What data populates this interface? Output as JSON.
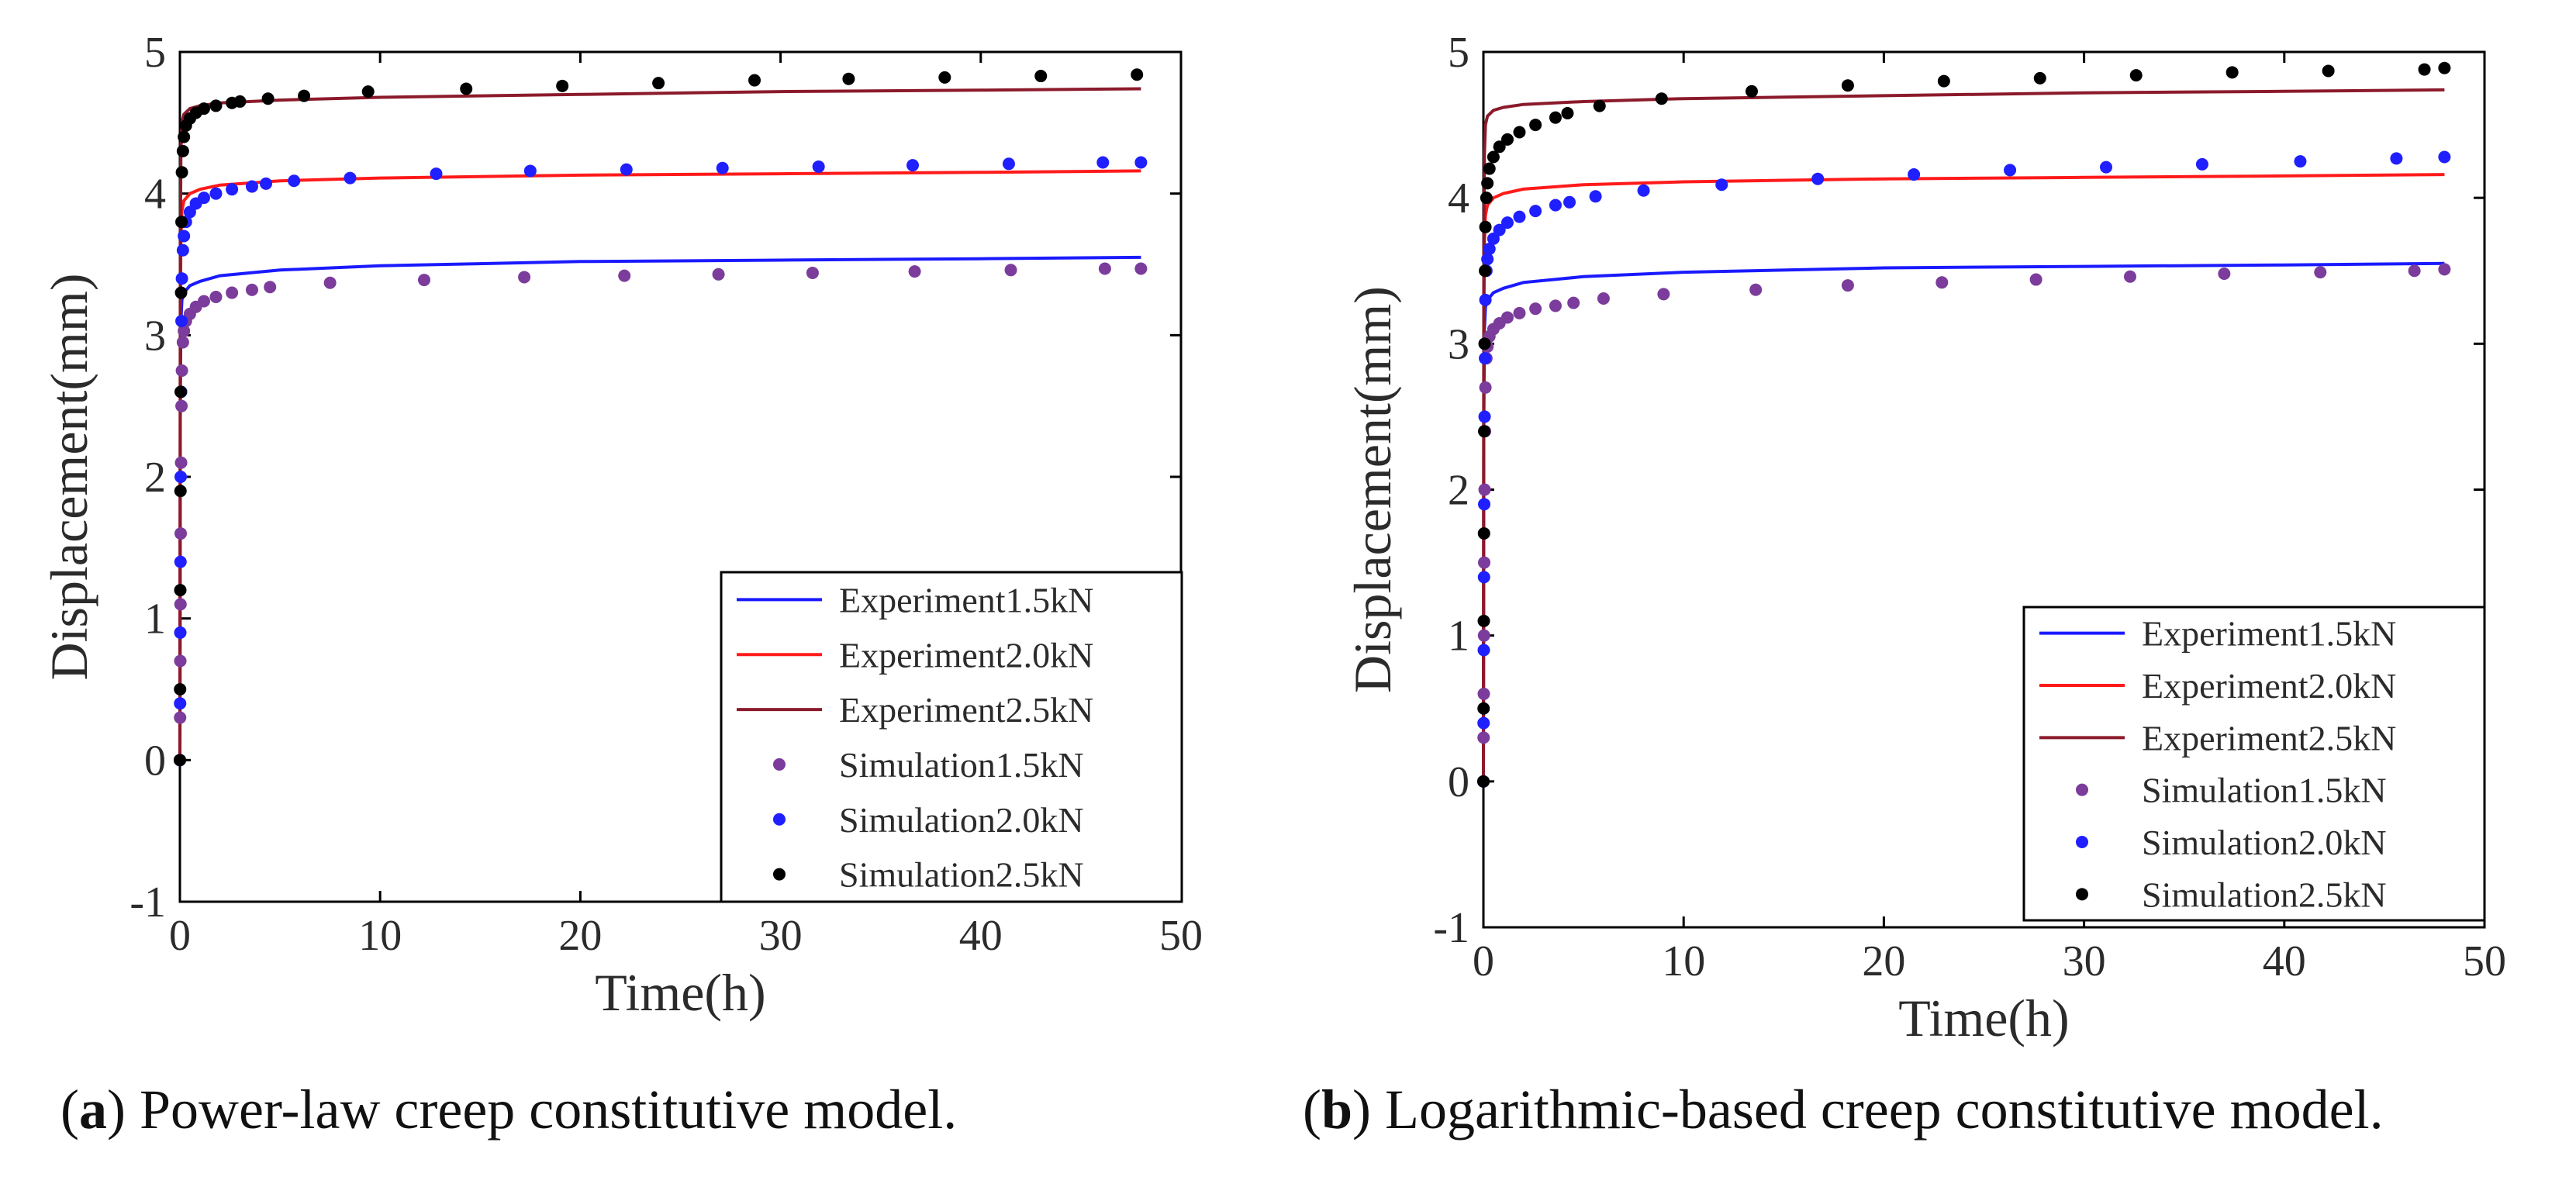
{
  "captions": [
    {
      "letter": "a",
      "text": "Power-law creep constitutive model."
    },
    {
      "letter": "b",
      "text": "Logarithmic-based creep constitutive model."
    }
  ],
  "colors": {
    "exp15": "#1a1aff",
    "exp20": "#ff1a1a",
    "exp25": "#8b1a2b",
    "sim15": "#7b3c9b",
    "sim20": "#1f1fff",
    "sim25": "#000000"
  },
  "chart_data": [
    {
      "type": "line",
      "xlabel": "Time(h)",
      "ylabel": "Displacement(mm)",
      "xlim": [
        0,
        50
      ],
      "ylim": [
        -1,
        5
      ],
      "xticks": [
        0,
        10,
        20,
        30,
        40,
        50
      ],
      "yticks": [
        -1,
        0,
        1,
        2,
        3,
        4,
        5
      ],
      "legend_position": "bottom-right",
      "series": [
        {
          "name": "Experiment1.5kN",
          "kind": "line",
          "color_key": "exp15",
          "x": [
            0,
            0.01,
            0.02,
            0.05,
            0.1,
            0.2,
            0.5,
            1,
            2,
            5,
            10,
            20,
            30,
            40,
            48
          ],
          "y": [
            0,
            1.2,
            2.4,
            3.1,
            3.25,
            3.3,
            3.35,
            3.38,
            3.42,
            3.46,
            3.49,
            3.52,
            3.53,
            3.54,
            3.55
          ]
        },
        {
          "name": "Experiment2.0kN",
          "kind": "line",
          "color_key": "exp20",
          "x": [
            0,
            0.01,
            0.02,
            0.05,
            0.1,
            0.2,
            0.5,
            1,
            2,
            5,
            10,
            20,
            30,
            40,
            48
          ],
          "y": [
            0,
            1.5,
            3.0,
            3.7,
            3.88,
            3.95,
            4.0,
            4.03,
            4.06,
            4.09,
            4.11,
            4.13,
            4.14,
            4.15,
            4.16
          ]
        },
        {
          "name": "Experiment2.5kN",
          "kind": "line",
          "color_key": "exp25",
          "x": [
            0,
            0.01,
            0.02,
            0.05,
            0.1,
            0.2,
            0.5,
            1,
            2,
            5,
            10,
            20,
            30,
            40,
            48
          ],
          "y": [
            0,
            1.8,
            3.5,
            4.3,
            4.5,
            4.56,
            4.6,
            4.62,
            4.64,
            4.66,
            4.68,
            4.7,
            4.72,
            4.73,
            4.74
          ]
        },
        {
          "name": "Simulation1.5kN",
          "kind": "scatter",
          "color_key": "sim15",
          "x": [
            0,
            0.01,
            0.02,
            0.03,
            0.04,
            0.06,
            0.08,
            0.1,
            0.15,
            0.2,
            0.3,
            0.5,
            0.8,
            1.2,
            1.8,
            2.6,
            3.6,
            4.5,
            7.5,
            12.2,
            17.2,
            22.2,
            26.9,
            31.6,
            36.7,
            41.5,
            46.2,
            48
          ],
          "y": [
            0,
            0.3,
            0.7,
            1.1,
            1.6,
            2.1,
            2.5,
            2.75,
            2.95,
            3.03,
            3.1,
            3.15,
            3.2,
            3.24,
            3.27,
            3.3,
            3.32,
            3.34,
            3.37,
            3.39,
            3.41,
            3.42,
            3.43,
            3.44,
            3.45,
            3.46,
            3.47,
            3.47
          ]
        },
        {
          "name": "Simulation2.0kN",
          "kind": "scatter",
          "color_key": "sim20",
          "x": [
            0,
            0.01,
            0.02,
            0.03,
            0.04,
            0.06,
            0.08,
            0.1,
            0.15,
            0.2,
            0.3,
            0.5,
            0.8,
            1.2,
            1.8,
            2.6,
            3.6,
            4.3,
            5.7,
            8.5,
            12.8,
            17.5,
            22.3,
            27.1,
            31.9,
            36.6,
            41.4,
            46.1,
            48
          ],
          "y": [
            0,
            0.4,
            0.9,
            1.4,
            2.0,
            2.6,
            3.1,
            3.4,
            3.6,
            3.7,
            3.8,
            3.87,
            3.93,
            3.97,
            4.0,
            4.03,
            4.05,
            4.07,
            4.09,
            4.11,
            4.14,
            4.16,
            4.17,
            4.18,
            4.19,
            4.2,
            4.21,
            4.22,
            4.22
          ]
        },
        {
          "name": "Simulation2.5kN",
          "kind": "scatter",
          "color_key": "sim25",
          "x": [
            0,
            0.01,
            0.02,
            0.03,
            0.04,
            0.06,
            0.08,
            0.1,
            0.15,
            0.2,
            0.3,
            0.5,
            0.8,
            1.2,
            1.8,
            2.6,
            3.0,
            4.4,
            6.2,
            9.4,
            14.3,
            19.1,
            23.9,
            28.7,
            33.4,
            38.2,
            43.0,
            47.8
          ],
          "y": [
            0,
            0.5,
            1.2,
            1.9,
            2.6,
            3.3,
            3.8,
            4.15,
            4.3,
            4.4,
            4.48,
            4.53,
            4.57,
            4.6,
            4.62,
            4.64,
            4.65,
            4.67,
            4.69,
            4.72,
            4.74,
            4.76,
            4.78,
            4.8,
            4.81,
            4.82,
            4.83,
            4.84
          ]
        }
      ]
    },
    {
      "type": "line",
      "xlabel": "Time(h)",
      "ylabel": "Displacement(mm)",
      "xlim": [
        0,
        50
      ],
      "ylim": [
        -1,
        5
      ],
      "xticks": [
        0,
        10,
        20,
        30,
        40,
        50
      ],
      "yticks": [
        -1,
        0,
        1,
        2,
        3,
        4,
        5
      ],
      "legend_position": "bottom-right",
      "series": [
        {
          "name": "Experiment1.5kN",
          "kind": "line",
          "color_key": "exp15",
          "x": [
            0,
            0.01,
            0.02,
            0.05,
            0.1,
            0.2,
            0.5,
            1,
            2,
            5,
            10,
            20,
            30,
            40,
            48
          ],
          "y": [
            0,
            1.2,
            2.4,
            3.1,
            3.25,
            3.3,
            3.35,
            3.38,
            3.42,
            3.46,
            3.49,
            3.52,
            3.53,
            3.54,
            3.55
          ]
        },
        {
          "name": "Experiment2.0kN",
          "kind": "line",
          "color_key": "exp20",
          "x": [
            0,
            0.01,
            0.02,
            0.05,
            0.1,
            0.2,
            0.5,
            1,
            2,
            5,
            10,
            20,
            30,
            40,
            48
          ],
          "y": [
            0,
            1.5,
            3.0,
            3.7,
            3.88,
            3.95,
            4.0,
            4.03,
            4.06,
            4.09,
            4.11,
            4.13,
            4.14,
            4.15,
            4.16
          ]
        },
        {
          "name": "Experiment2.5kN",
          "kind": "line",
          "color_key": "exp25",
          "x": [
            0,
            0.01,
            0.02,
            0.05,
            0.1,
            0.2,
            0.5,
            1,
            2,
            5,
            10,
            20,
            30,
            40,
            48
          ],
          "y": [
            0,
            1.8,
            3.5,
            4.3,
            4.5,
            4.56,
            4.6,
            4.62,
            4.64,
            4.66,
            4.68,
            4.7,
            4.72,
            4.73,
            4.74
          ]
        },
        {
          "name": "Simulation1.5kN",
          "kind": "scatter",
          "color_key": "sim15",
          "x": [
            0,
            0.01,
            0.02,
            0.03,
            0.04,
            0.06,
            0.08,
            0.1,
            0.15,
            0.2,
            0.3,
            0.5,
            0.8,
            1.2,
            1.8,
            2.6,
            3.6,
            4.5,
            6.0,
            9.0,
            13.6,
            18.2,
            22.9,
            27.6,
            32.3,
            37.0,
            41.8,
            46.5,
            48
          ],
          "y": [
            0,
            0.3,
            0.6,
            1.0,
            1.5,
            2.0,
            2.4,
            2.7,
            2.9,
            2.98,
            3.05,
            3.1,
            3.14,
            3.18,
            3.21,
            3.24,
            3.26,
            3.28,
            3.31,
            3.34,
            3.37,
            3.4,
            3.42,
            3.44,
            3.46,
            3.48,
            3.49,
            3.5,
            3.51
          ]
        },
        {
          "name": "Simulation2.0kN",
          "kind": "scatter",
          "color_key": "sim20",
          "x": [
            0,
            0.01,
            0.02,
            0.03,
            0.04,
            0.06,
            0.08,
            0.1,
            0.15,
            0.2,
            0.3,
            0.5,
            0.8,
            1.2,
            1.8,
            2.6,
            3.6,
            4.3,
            5.6,
            8.0,
            11.9,
            16.7,
            21.5,
            26.3,
            31.1,
            35.9,
            40.8,
            45.6,
            48
          ],
          "y": [
            0,
            0.4,
            0.9,
            1.4,
            1.9,
            2.5,
            2.9,
            3.3,
            3.5,
            3.58,
            3.65,
            3.72,
            3.78,
            3.83,
            3.87,
            3.91,
            3.95,
            3.97,
            4.01,
            4.05,
            4.09,
            4.13,
            4.16,
            4.19,
            4.21,
            4.23,
            4.25,
            4.27,
            4.28
          ]
        },
        {
          "name": "Simulation2.5kN",
          "kind": "scatter",
          "color_key": "sim25",
          "x": [
            0,
            0.01,
            0.02,
            0.03,
            0.04,
            0.06,
            0.08,
            0.1,
            0.15,
            0.2,
            0.3,
            0.5,
            0.8,
            1.2,
            1.8,
            2.6,
            3.6,
            4.2,
            5.8,
            8.9,
            13.4,
            18.2,
            23.0,
            27.8,
            32.6,
            37.4,
            42.2,
            47.0,
            48
          ],
          "y": [
            0,
            0.5,
            1.1,
            1.7,
            2.4,
            3.0,
            3.5,
            3.8,
            4.0,
            4.1,
            4.2,
            4.28,
            4.35,
            4.4,
            4.45,
            4.5,
            4.55,
            4.58,
            4.63,
            4.68,
            4.73,
            4.77,
            4.8,
            4.82,
            4.84,
            4.86,
            4.87,
            4.88,
            4.89
          ]
        }
      ]
    }
  ]
}
